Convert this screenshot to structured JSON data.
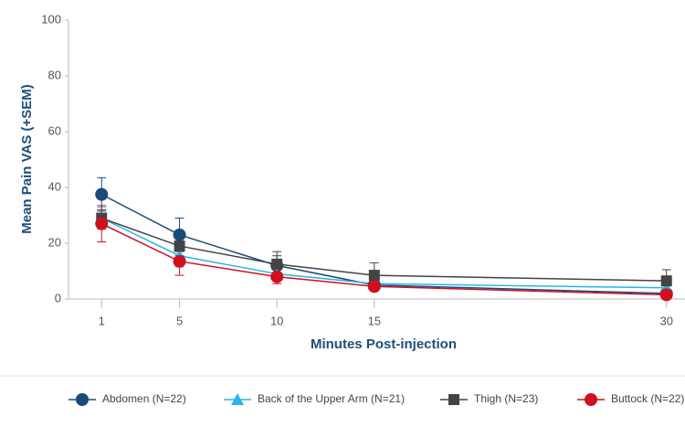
{
  "chart_data": {
    "type": "line",
    "x_label": "Minutes Post-injection",
    "y_label": "Mean Pain VAS (+SEM)",
    "x": [
      1,
      5,
      10,
      15,
      30
    ],
    "xlim": [
      -0.7,
      30.95
    ],
    "xticks": [
      1,
      5,
      10,
      15,
      30
    ],
    "ylim": [
      0,
      100
    ],
    "yticks": [
      0,
      20,
      40,
      60,
      80,
      100
    ],
    "legend_position": "bottom",
    "series": [
      {
        "name": "Abdomen (N=22)",
        "color": "#1a4a7a",
        "marker": "circle",
        "values": [
          37.5,
          23,
          12,
          5,
          2
        ],
        "errors": [
          6,
          6,
          3.5,
          2,
          1.5
        ]
      },
      {
        "name": "Back of the Upper Arm (N=21)",
        "color": "#29b5e8",
        "marker": "triangle",
        "values": [
          29,
          15.5,
          9,
          5.5,
          4
        ],
        "errors": [
          4,
          4,
          2,
          1.5,
          1
        ]
      },
      {
        "name": "Thigh (N=23)",
        "color": "#444444",
        "marker": "square",
        "values": [
          29,
          19,
          12.5,
          8.5,
          6.5
        ],
        "errors": [
          3,
          3.5,
          4.5,
          4.5,
          4
        ]
      },
      {
        "name": "Buttock (N=22)",
        "color": "#d0101f",
        "marker": "circle",
        "values": [
          27,
          13.5,
          8,
          4.5,
          1.5
        ],
        "errors": [
          6.5,
          5,
          2.5,
          1.5,
          1
        ]
      }
    ]
  }
}
